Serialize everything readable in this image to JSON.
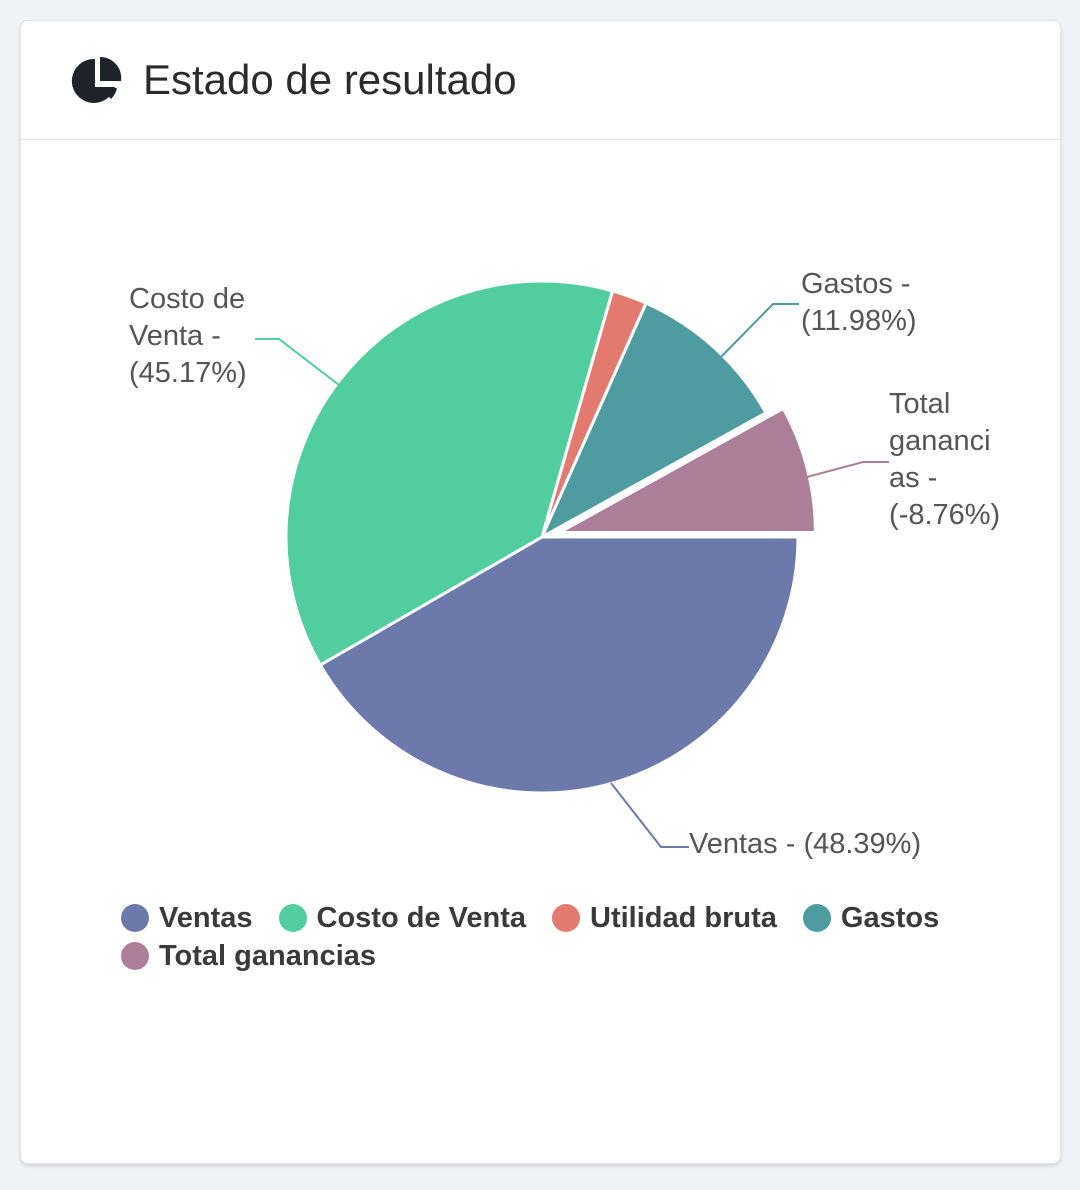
{
  "card": {
    "title": "Estado de resultado",
    "icon": "pie-chart-icon"
  },
  "chart_data": {
    "type": "pie",
    "title": "Estado de resultado",
    "slices": [
      {
        "name": "Ventas",
        "percent": 48.39,
        "color": "#6c79ab",
        "label_lines": [
          "Ventas -  (48.39%)"
        ]
      },
      {
        "name": "Costo de Venta",
        "percent": 45.17,
        "color": "#52cd9f",
        "label_lines": [
          "Costo de",
          "Venta -",
          "(45.17%)"
        ]
      },
      {
        "name": "Utilidad bruta",
        "percent": 3.22,
        "color": "#e27a70",
        "label_lines": []
      },
      {
        "name": "Gastos",
        "percent": 11.98,
        "color": "#4e9ca0",
        "label_lines": [
          "Gastos -",
          "(11.98%)"
        ]
      },
      {
        "name": "Total ganancias",
        "percent": -8.76,
        "color": "#ad7e99",
        "label_lines": [
          "Total",
          "gananci",
          "as -",
          "(-8.76%)"
        ]
      }
    ],
    "legend_position": "bottom"
  },
  "legend": [
    {
      "label": "Ventas",
      "color": "#6c79ab"
    },
    {
      "label": "Costo de Venta",
      "color": "#52cd9f"
    },
    {
      "label": "Utilidad bruta",
      "color": "#e27a70"
    },
    {
      "label": "Gastos",
      "color": "#4e9ca0"
    },
    {
      "label": "Total ganancias",
      "color": "#ad7e99"
    }
  ]
}
